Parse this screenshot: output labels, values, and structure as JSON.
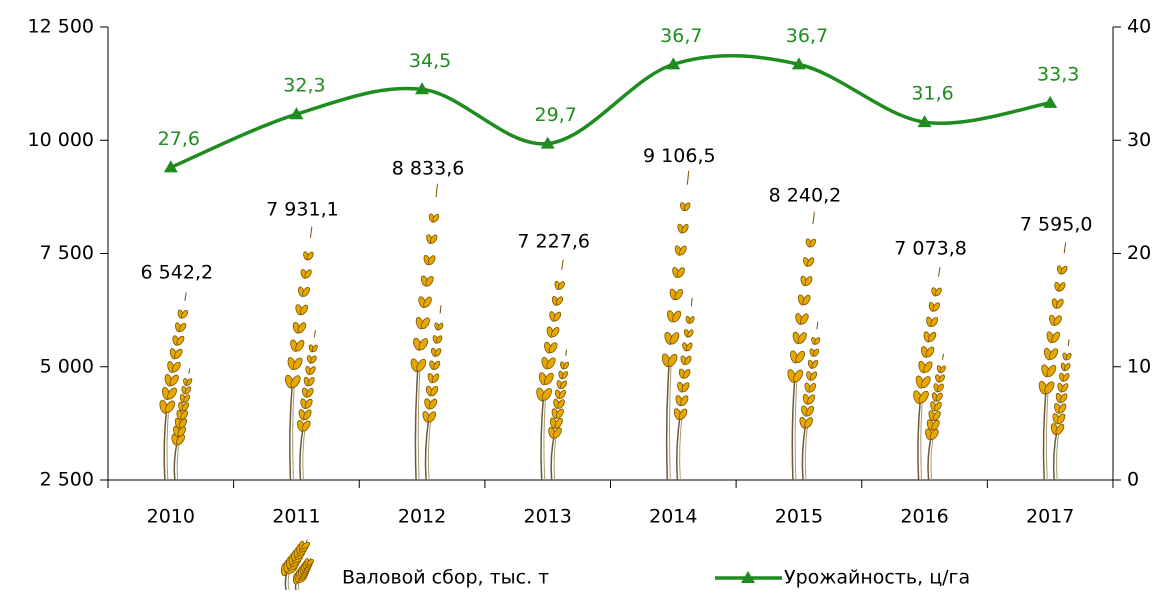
{
  "chart_data": {
    "type": "bar",
    "categories": [
      "2010",
      "2011",
      "2012",
      "2013",
      "2014",
      "2015",
      "2016",
      "2017"
    ],
    "series": [
      {
        "name": "Валовой сбор, тыс. т",
        "color": "#e0a400",
        "type": "bar",
        "values": [
          6542.2,
          7931.1,
          8833.6,
          7227.6,
          9106.5,
          8240.2,
          7073.8,
          7595.0
        ],
        "value_labels": [
          "6 542,2",
          "7 931,1",
          "8 833,6",
          "7 227,6",
          "9 106,5",
          "8 240,2",
          "7 073,8",
          "7 595,0"
        ]
      },
      {
        "name": "Урожайность, ц/га",
        "color": "#1e8c1e",
        "type": "line",
        "axis": "y2",
        "values": [
          27.6,
          32.3,
          34.5,
          29.7,
          36.7,
          36.7,
          31.6,
          33.3
        ],
        "value_labels": [
          "27,6",
          "32,3",
          "34,5",
          "29,7",
          "36,7",
          "36,7",
          "31,6",
          "33,3"
        ]
      }
    ],
    "ylim": [
      2500,
      12500
    ],
    "yticks": [
      {
        "value": 2500,
        "label": "2 500"
      },
      {
        "value": 5000,
        "label": "5 000"
      },
      {
        "value": 7500,
        "label": "7 500"
      },
      {
        "value": 10000,
        "label": "10 000"
      },
      {
        "value": 12500,
        "label": "12 500"
      }
    ],
    "y2lim": [
      0,
      40
    ],
    "y2ticks": [
      0,
      10,
      20,
      30,
      40
    ],
    "grid": false,
    "legend": "bottom"
  }
}
